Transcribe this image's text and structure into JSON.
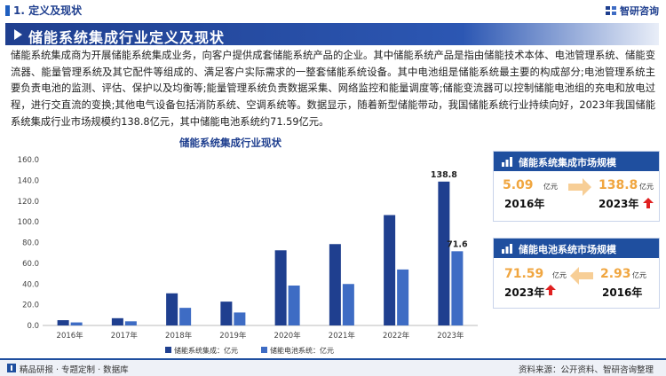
{
  "header": {
    "section_label": "1. 定义及现状",
    "logo_text": "智研咨询"
  },
  "title": "储能系统集成行业定义及现状",
  "paragraph": "储能系统集成商为开展储能系统集成业务，向客户提供成套储能系统产品的企业。其中储能系统产品是指由储能技术本体、电池管理系统、储能变流器、能量管理系统及其它配件等组成的、满足客户实际需求的一整套储能系统设备。其中电池组是储能系统最主要的构成部分;电池管理系统主要负责电池的监测、评估、保护以及均衡等;能量管理系统负责数据采集、网络监控和能量调度等;储能变流器可以控制储能电池组的充电和放电过程，进行交直流的变换;其他电气设备包括消防系统、空调系统等。数据显示，随着新型储能带动，我国储能系统行业持续向好，2023年我国储能系统集成行业市场规模约138.8亿元，其中储能电池系统约71.59亿元。",
  "chart_data": {
    "type": "bar",
    "title": "储能系统集成行业现状",
    "categories": [
      "2016年",
      "2017年",
      "2018年",
      "2019年",
      "2020年",
      "2021年",
      "2022年",
      "2023年"
    ],
    "series": [
      {
        "name": "储能系统集成：亿元",
        "values": [
          5.09,
          7.0,
          31.0,
          23.0,
          72.5,
          78.5,
          106.5,
          138.8
        ],
        "color": "#1f3f8f"
      },
      {
        "name": "储能电池系统：亿元",
        "values": [
          2.93,
          4.0,
          17.0,
          12.5,
          38.5,
          40.0,
          54.0,
          71.59
        ],
        "color": "#3e6cc4"
      }
    ],
    "data_labels": {
      "2023年_0": "138.8",
      "2023年_1": "71.6"
    },
    "ylim": [
      0,
      160
    ],
    "yticks": [
      "0.0",
      "20.0",
      "40.0",
      "60.0",
      "80.0",
      "100.0",
      "120.0",
      "140.0",
      "160.0"
    ],
    "grid": false,
    "legend": "bottom"
  },
  "card_integration": {
    "title": "储能系统集成市场规模",
    "left_value": "5.09",
    "left_unit": "亿元",
    "left_year": "2016年",
    "right_value": "138.8",
    "right_unit": "亿元",
    "right_year": "2023年"
  },
  "card_battery": {
    "title": "储能电池系统市场规模",
    "left_value": "71.59",
    "left_unit": "亿元",
    "left_year": "2023年",
    "right_value": "2.93",
    "right_unit": "亿元",
    "right_year": "2016年"
  },
  "footer": {
    "left": "精品研报 · 专题定制 · 数据库",
    "right": "资料来源：公开资料、智研咨询整理"
  },
  "colors": {
    "primary": "#1f3f8f",
    "secondary": "#3e6cc4",
    "accent": "#f0a640",
    "arrow": "#e02020"
  }
}
